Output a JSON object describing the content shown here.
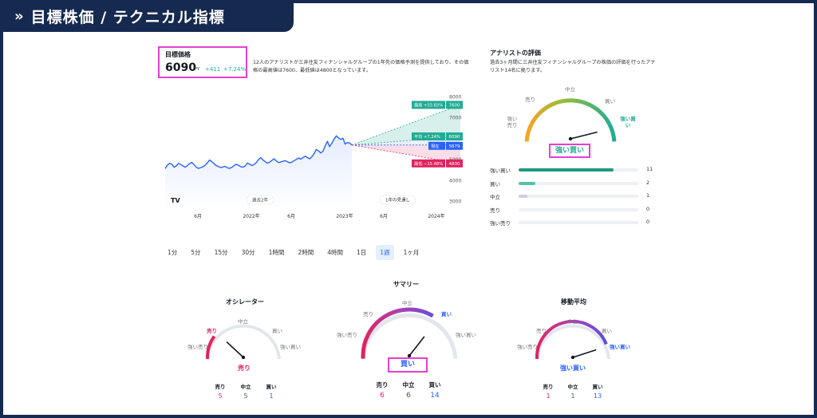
{
  "header": {
    "chevron": "»",
    "title": "目標株価 / テクニカル指標"
  },
  "price_target": {
    "label": "目標価格",
    "price": "6090",
    "currency": "JPY",
    "change": "+411",
    "change_pct": "+7.24%",
    "description": "12人のアナリストが三井住友フィナンシャルグループの1年先の価格予測を提供しており、その価格の最高値は7600、最低値は4800となっています。"
  },
  "chart_data": {
    "type": "line",
    "y_ticks": [
      "8000",
      "7000",
      "5000",
      "4000",
      "3000"
    ],
    "x_ticks": [
      "6月",
      "2022年",
      "6月",
      "2023年",
      "6月",
      "2024年"
    ],
    "period_labels": {
      "past": "過去2年",
      "forecast": "1年の見通し"
    },
    "logo": "TV",
    "price_history": [
      4550,
      4720,
      4800,
      4760,
      4620,
      4680,
      4800,
      4750,
      4680,
      4620,
      4700,
      4790,
      4850,
      4740,
      4620,
      4560,
      4600,
      4640,
      4710,
      4830,
      4960,
      4880,
      4790,
      4690,
      4650,
      4600,
      4630,
      4660,
      4590,
      4560,
      4610,
      4700,
      4760,
      4710,
      4640,
      4620,
      4680,
      4820,
      4760,
      4700,
      4740,
      4840,
      4980,
      5080,
      4960,
      4880,
      4810,
      4860,
      4940,
      5020,
      4920,
      4840,
      4870,
      4900,
      4930,
      4880,
      4830,
      4860,
      4930,
      4990,
      5060,
      5000,
      5080,
      5140,
      5080,
      5020,
      5120,
      5260,
      5470,
      5400,
      5300,
      5380,
      5640,
      5860,
      5600,
      5760,
      5959,
      6120,
      6020,
      5950,
      6000,
      5720,
      5800,
      5780,
      5679
    ],
    "forecast": {
      "current": 5679,
      "high": 7600,
      "average": 6090,
      "low": 4800
    },
    "forecast_labels": [
      {
        "name": "最高 +33.83%",
        "value": "7600",
        "color": "#22ab94"
      },
      {
        "name": "平均 +7.24%",
        "value": "6090",
        "color": "#22ab94"
      },
      {
        "name": "現在",
        "value": "5679",
        "color": "#2962ff"
      },
      {
        "name": "最低 −15.48%",
        "value": "4800",
        "color": "#e0245e"
      }
    ]
  },
  "timeframes": [
    "1分",
    "5分",
    "15分",
    "30分",
    "1時間",
    "2時間",
    "4時間",
    "1日",
    "1週",
    "1ヶ月"
  ],
  "active_timeframe": "1週",
  "analyst": {
    "title": "アナリストの評価",
    "description": "過去3ヶ月間に三井住友フィナンシャルグループの株価の評価を行ったアナリスト14名に拠ります。",
    "gauge_labels": {
      "strong_sell": "強い売り",
      "sell": "売り",
      "neutral": "中立",
      "buy": "買い",
      "strong_buy": "強い買い"
    },
    "result": "強い買い",
    "ratings": [
      {
        "label": "強い買い",
        "count": "11",
        "fraction": 0.79,
        "color": "#1e9a7e"
      },
      {
        "label": "買い",
        "count": "2",
        "fraction": 0.14,
        "color": "#4fc4a9"
      },
      {
        "label": "中立",
        "count": "1",
        "fraction": 0.07,
        "color": "#c9cfe6"
      },
      {
        "label": "売り",
        "count": "0",
        "fraction": 0,
        "color": "#e0245e"
      },
      {
        "label": "強い売り",
        "count": "0",
        "fraction": 0,
        "color": "#e0245e"
      }
    ]
  },
  "summary": {
    "title": "サマリー",
    "labels": {
      "strong_sell": "強い売り",
      "sell": "売り",
      "neutral": "中立",
      "buy": "買い",
      "strong_buy": "強い買い"
    },
    "result": "買い",
    "counts": [
      {
        "label": "売り",
        "value": "6",
        "color": "#e0245e"
      },
      {
        "label": "中立",
        "value": "6",
        "color": "#555555"
      },
      {
        "label": "買い",
        "value": "14",
        "color": "#2962ff"
      }
    ]
  },
  "oscillators": {
    "title": "オシレーター",
    "labels": {
      "strong_sell": "強い売り",
      "sell": "売り",
      "neutral": "中立",
      "buy": "買い",
      "strong_buy": "強い買い"
    },
    "result": "売り",
    "counts": [
      {
        "label": "売り",
        "value": "5",
        "color": "#e0245e"
      },
      {
        "label": "中立",
        "value": "5",
        "color": "#555555"
      },
      {
        "label": "買い",
        "value": "1",
        "color": "#2962ff"
      }
    ]
  },
  "moving_averages": {
    "title": "移動平均",
    "labels": {
      "strong_sell": "強い売り",
      "sell": "売り",
      "neutral": "中立",
      "buy": "買い",
      "strong_buy": "強い買い"
    },
    "result": "強い買い",
    "counts": [
      {
        "label": "売り",
        "value": "1",
        "color": "#e0245e"
      },
      {
        "label": "中立",
        "value": "1",
        "color": "#555555"
      },
      {
        "label": "買い",
        "value": "13",
        "color": "#2962ff"
      }
    ]
  },
  "colors": {
    "navy": "#16294f",
    "highlight": "#e63fcf",
    "green": "#22ab94",
    "blue": "#2962ff",
    "red": "#e0245e"
  }
}
